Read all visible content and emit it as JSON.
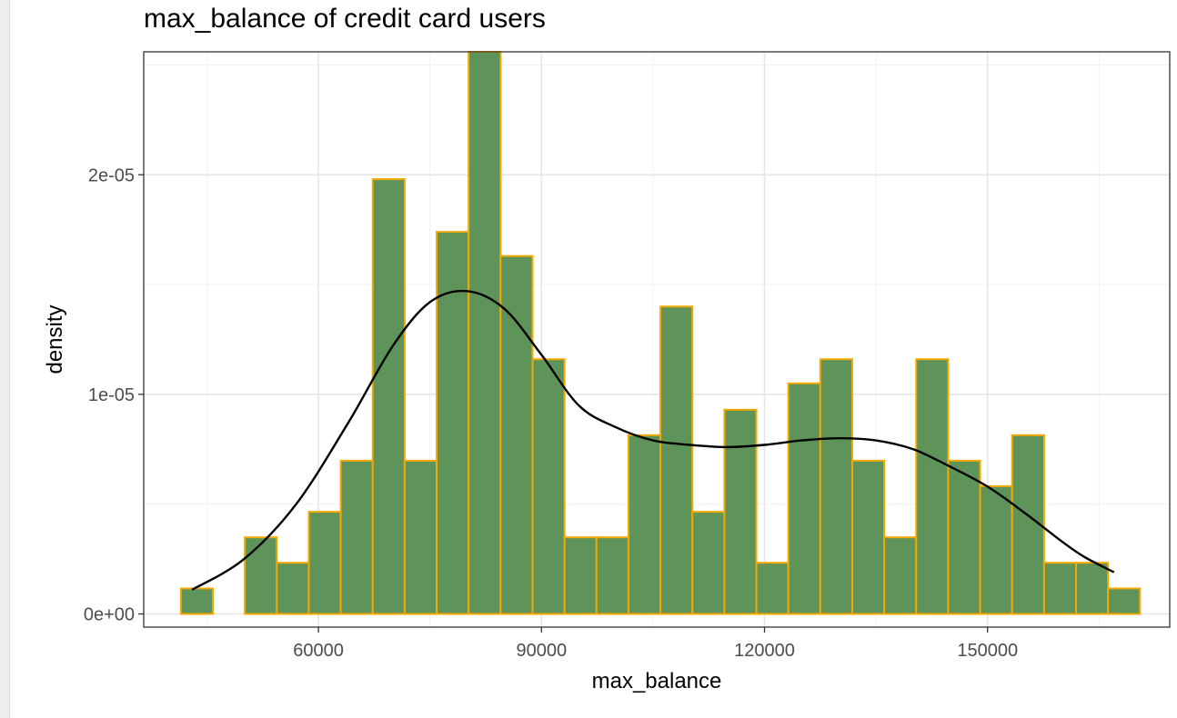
{
  "chart_data": {
    "type": "bar",
    "title": "max_balance of credit card users",
    "xlabel": "max_balance",
    "ylabel": "density",
    "xlim": [
      36500,
      174500
    ],
    "ylim": [
      -6e-07,
      2.56e-05
    ],
    "x_ticks": [
      60000,
      90000,
      120000,
      150000
    ],
    "x_tick_labels": [
      "60000",
      "90000",
      "120000",
      "150000"
    ],
    "y_ticks": [
      0,
      1e-05,
      2e-05
    ],
    "y_tick_labels": [
      "0e+00",
      "1e-05",
      "2e-05"
    ],
    "grid": true,
    "bin_start": 41500,
    "bin_width": 4300,
    "values": [
      1.16e-06,
      0,
      3.49e-06,
      2.33e-06,
      4.65e-06,
      6.98e-06,
      1.98e-05,
      6.98e-06,
      1.74e-05,
      2.56e-05,
      1.63e-05,
      1.16e-05,
      3.49e-06,
      3.49e-06,
      8.14e-06,
      1.4e-05,
      4.65e-06,
      9.3e-06,
      2.33e-06,
      1.05e-05,
      1.16e-05,
      6.98e-06,
      3.49e-06,
      1.16e-05,
      6.98e-06,
      5.82e-06,
      8.14e-06,
      2.33e-06,
      2.33e-06,
      1.16e-06
    ],
    "density_curve": {
      "x": [
        43000,
        50000,
        57000,
        64000,
        70000,
        75000,
        80000,
        85000,
        90000,
        95000,
        100000,
        105000,
        110000,
        115000,
        120000,
        125000,
        130000,
        135000,
        140000,
        145000,
        150000,
        155000,
        160000,
        163000,
        167000
      ],
      "y": [
        1.1e-06,
        2.5e-06,
        5e-06,
        8.7e-06,
        1.22e-05,
        1.42e-05,
        1.47e-05,
        1.39e-05,
        1.18e-05,
        9.5e-06,
        8.5e-06,
        7.9e-06,
        7.7e-06,
        7.6e-06,
        7.7e-06,
        7.9e-06,
        8e-06,
        7.9e-06,
        7.5e-06,
        6.7e-06,
        5.8e-06,
        4.6e-06,
        3.3e-06,
        2.6e-06,
        1.9e-06
      ]
    },
    "colors": {
      "bar_fill": "#5e9459",
      "bar_stroke": "#f5a800",
      "curve": "#000000",
      "grid_major": "#e6e6e6",
      "grid_minor": "#f2f2f2",
      "panel_border": "#333333"
    }
  }
}
